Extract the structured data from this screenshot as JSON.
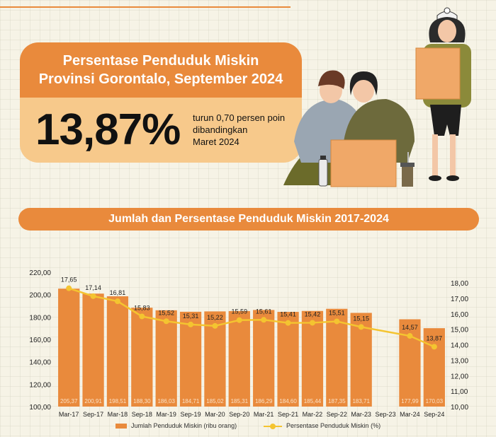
{
  "header": {
    "title_line1": "Persentase Penduduk Miskin",
    "title_line2": "Provinsi Gorontalo, September 2024"
  },
  "headline": {
    "value": "13,87%",
    "desc_line1": "turun 0,70 persen poin",
    "desc_line2": "dibandingkan",
    "desc_line3": "Maret 2024"
  },
  "section_title": "Jumlah dan Persentase Penduduk Miskin 2017-2024",
  "colors": {
    "accent": "#e98a3c",
    "line": "#f4c430",
    "light": "#f7c98b"
  },
  "chart_data": {
    "type": "bar",
    "categories": [
      "Mar-17",
      "Sep-17",
      "Mar-18",
      "Sep-18",
      "Mar-19",
      "Sep-19",
      "Mar-20",
      "Sep-20",
      "Mar-21",
      "Sep-21",
      "Mar-22",
      "Sep-22",
      "Mar-23",
      "Sep-23",
      "Mar-24",
      "Sep-24"
    ],
    "series": [
      {
        "name": "Jumlah Penduduk Miskin (ribu orang)",
        "type": "bar",
        "axis": "left",
        "values": [
          205.37,
          200.91,
          198.51,
          188.3,
          186.03,
          184.71,
          185.02,
          185.31,
          186.29,
          184.6,
          185.44,
          187.35,
          183.71,
          null,
          177.99,
          170.03
        ],
        "labels": [
          "205,37",
          "200,91",
          "198,51",
          "188,30",
          "186,03",
          "184,71",
          "185,02",
          "185,31",
          "186,29",
          "184,60",
          "185,44",
          "187,35",
          "183,71",
          "",
          "177,99",
          "170,03"
        ]
      },
      {
        "name": "Persentase Penduduk Miskin (%)",
        "type": "line",
        "axis": "right",
        "values": [
          17.65,
          17.14,
          16.81,
          15.83,
          15.52,
          15.31,
          15.22,
          15.59,
          15.61,
          15.41,
          15.42,
          15.51,
          15.15,
          null,
          14.57,
          13.87
        ],
        "labels": [
          "17,65",
          "17,14",
          "16,81",
          "15,83",
          "15,52",
          "15,31",
          "15,22",
          "15,59",
          "15,61",
          "15,41",
          "15,42",
          "15,51",
          "15,15",
          "",
          "14,57",
          "13,87"
        ]
      }
    ],
    "y_left": {
      "min": 100,
      "max": 220,
      "ticks": [
        "100,00",
        "120,00",
        "140,00",
        "160,00",
        "180,00",
        "200,00",
        "220,00"
      ]
    },
    "y_right": {
      "min": 10,
      "max": 18,
      "ticks": [
        "10,00",
        "11,00",
        "12,00",
        "13,00",
        "14,00",
        "15,00",
        "16,00",
        "17,00",
        "18,00"
      ]
    },
    "legend_position": "bottom"
  }
}
